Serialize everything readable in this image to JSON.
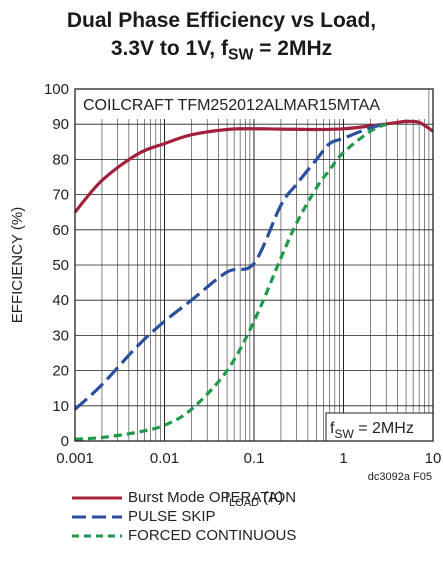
{
  "title": {
    "line1": "Dual Phase Efficiency vs Load,",
    "line2_main": "3.3V to 1V, f",
    "line2_sub": "SW",
    "line2_tail": " = 2MHz"
  },
  "inner_label": "COILCRAFT TFM252012ALMAR15MTAA",
  "fsw_label": {
    "main": "f",
    "sub": "SW",
    "tail": " = 2MHz"
  },
  "figure_code": "dc3092a F05",
  "chart_data": {
    "type": "line",
    "title": "Dual Phase Efficiency vs Load, 3.3V to 1V, fSW = 2MHz",
    "xlabel": "ILOAD (A)",
    "xlabel_parts": {
      "main": "I",
      "sub": "LOAD",
      "tail": " (A)"
    },
    "ylabel": "EFFICIENCY (%)",
    "x_scale": "log",
    "xlim": [
      0.001,
      10
    ],
    "ylim": [
      0,
      100
    ],
    "x_ticks": [
      0.001,
      0.01,
      0.1,
      1,
      10
    ],
    "x_tick_labels": [
      "0.001",
      "0.01",
      "0.1",
      "1",
      "10"
    ],
    "y_ticks": [
      0,
      10,
      20,
      30,
      40,
      50,
      60,
      70,
      80,
      90,
      100
    ],
    "y_tick_labels": [
      "0",
      "10",
      "20",
      "30",
      "40",
      "50",
      "60",
      "70",
      "80",
      "90",
      "100"
    ],
    "grid": true,
    "legend_position": "bottom",
    "series": [
      {
        "name": "Burst Mode OPERATION",
        "color": "#a3203a",
        "dash": "solid",
        "x": [
          0.001,
          0.002,
          0.005,
          0.01,
          0.02,
          0.05,
          0.1,
          0.2,
          0.5,
          1,
          2,
          4,
          5,
          7,
          10
        ],
        "y": [
          65,
          74,
          81.5,
          84.5,
          87,
          88.5,
          88.7,
          88.6,
          88.5,
          88.7,
          89.5,
          90.5,
          90.8,
          90.5,
          88
        ]
      },
      {
        "name": "PULSE SKIP",
        "color": "#2a4f9c",
        "dash": "dashed",
        "x": [
          0.001,
          0.002,
          0.005,
          0.01,
          0.02,
          0.05,
          0.1,
          0.2,
          0.3,
          0.5,
          0.7,
          1,
          2,
          3
        ],
        "y": [
          9,
          16,
          27,
          34,
          40,
          48,
          50.5,
          67,
          73,
          80,
          84.5,
          86,
          89,
          90
        ]
      },
      {
        "name": "FORCED CONTINUOUS",
        "color": "#1e9a4a",
        "dash": "dotted-dash",
        "x": [
          0.001,
          0.002,
          0.005,
          0.01,
          0.02,
          0.05,
          0.1,
          0.2,
          0.3,
          0.5,
          0.7,
          1,
          2,
          3
        ],
        "y": [
          0.5,
          1,
          2.5,
          4.5,
          9,
          20,
          34,
          52,
          62,
          72,
          77,
          82,
          88,
          90
        ]
      }
    ]
  }
}
